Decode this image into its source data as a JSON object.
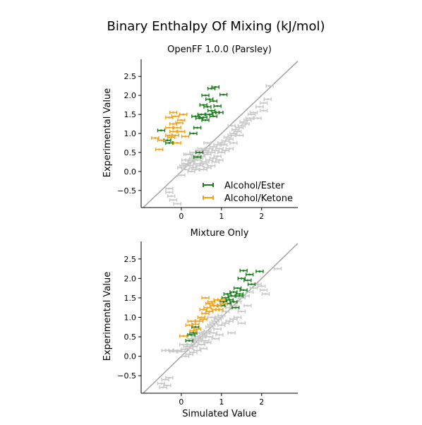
{
  "figure": {
    "suptitle": "Binary Enthalpy Of Mixing (kJ/mol)",
    "colors": {
      "grey": "#c8c8c8",
      "green": "#1a7f1a",
      "orange": "#f5a21a",
      "diag": "#9e9e9e"
    }
  },
  "chart_data": [
    {
      "type": "scatter",
      "title": "OpenFF 1.0.0 (Parsley)",
      "xlabel": "",
      "ylabel": "Experimental Value",
      "xlim": [
        -1.0,
        2.9
      ],
      "ylim": [
        -0.95,
        2.95
      ],
      "xticks": [
        "0",
        "1",
        "2"
      ],
      "yticks": [
        "−0.5",
        "0.0",
        "0.5",
        "1.0",
        "1.5",
        "2.0",
        "2.5"
      ],
      "legend_position": "lower-right",
      "series": [
        {
          "name": "Other",
          "color": "grey",
          "in_legend": false,
          "points": [
            [
              -0.3,
              -0.55
            ],
            [
              -0.25,
              -0.65
            ],
            [
              -0.2,
              -0.75
            ],
            [
              -0.3,
              -0.45
            ],
            [
              -0.1,
              -0.85
            ],
            [
              0.0,
              0.1
            ],
            [
              0.05,
              0.15
            ],
            [
              0.1,
              0.05
            ],
            [
              0.0,
              -0.1
            ],
            [
              0.15,
              0.2
            ],
            [
              0.2,
              0.3
            ],
            [
              0.25,
              0.25
            ],
            [
              0.3,
              0.35
            ],
            [
              0.1,
              0.3
            ],
            [
              0.2,
              0.45
            ],
            [
              0.3,
              0.5
            ],
            [
              0.35,
              0.4
            ],
            [
              0.4,
              0.3
            ],
            [
              0.45,
              0.35
            ],
            [
              0.5,
              0.4
            ],
            [
              0.55,
              0.5
            ],
            [
              0.5,
              0.6
            ],
            [
              0.6,
              0.55
            ],
            [
              0.65,
              0.45
            ],
            [
              0.7,
              0.6
            ],
            [
              0.75,
              0.5
            ],
            [
              0.8,
              0.65
            ],
            [
              0.85,
              0.55
            ],
            [
              0.9,
              0.7
            ],
            [
              0.95,
              0.6
            ],
            [
              1.0,
              0.75
            ],
            [
              1.05,
              0.7
            ],
            [
              1.1,
              0.8
            ],
            [
              1.15,
              0.9
            ],
            [
              1.2,
              0.85
            ],
            [
              1.25,
              0.95
            ],
            [
              1.3,
              1.0
            ],
            [
              1.35,
              1.1
            ],
            [
              1.4,
              1.05
            ],
            [
              1.45,
              1.15
            ],
            [
              1.5,
              1.2
            ],
            [
              1.55,
              1.3
            ],
            [
              1.6,
              1.25
            ],
            [
              1.65,
              1.35
            ],
            [
              1.7,
              1.4
            ],
            [
              1.75,
              1.5
            ],
            [
              1.8,
              1.55
            ],
            [
              1.95,
              1.7
            ],
            [
              2.05,
              1.8
            ],
            [
              2.15,
              1.9
            ],
            [
              2.05,
              1.6
            ],
            [
              1.9,
              1.4
            ],
            [
              0.3,
              0.1
            ],
            [
              0.4,
              0.2
            ],
            [
              0.6,
              0.25
            ],
            [
              0.7,
              0.3
            ],
            [
              0.8,
              0.35
            ],
            [
              0.9,
              0.4
            ],
            [
              1.0,
              0.5
            ],
            [
              1.1,
              0.55
            ],
            [
              1.2,
              0.6
            ],
            [
              0.25,
              0.0
            ],
            [
              0.35,
              0.05
            ],
            [
              0.45,
              0.15
            ],
            [
              0.15,
              0.45
            ],
            [
              0.65,
              0.75
            ],
            [
              1.3,
              0.75
            ],
            [
              1.45,
              0.95
            ],
            [
              0.55,
              0.2
            ],
            [
              0.75,
              0.15
            ],
            [
              0.85,
              0.25
            ],
            [
              0.95,
              0.3
            ],
            [
              0.45,
              0.55
            ],
            [
              0.2,
              0.15
            ],
            [
              2.2,
              2.25
            ],
            [
              0.1,
              0.2
            ],
            [
              0.55,
              0.05
            ],
            [
              0.65,
              0.1
            ],
            [
              1.25,
              1.2
            ]
          ]
        },
        {
          "name": "Alcohol/Ester",
          "color": "green",
          "in_legend": true,
          "points": [
            [
              0.75,
              2.18
            ],
            [
              0.85,
              2.22
            ],
            [
              1.05,
              2.02
            ],
            [
              0.6,
              2.0
            ],
            [
              0.7,
              1.9
            ],
            [
              0.8,
              1.85
            ],
            [
              0.55,
              1.75
            ],
            [
              0.65,
              1.7
            ],
            [
              0.9,
              1.72
            ],
            [
              0.75,
              1.6
            ],
            [
              0.85,
              1.55
            ],
            [
              0.5,
              1.5
            ],
            [
              0.35,
              1.45
            ],
            [
              0.45,
              1.4
            ],
            [
              0.55,
              1.42
            ],
            [
              0.7,
              1.5
            ],
            [
              0.8,
              1.45
            ],
            [
              0.6,
              1.35
            ],
            [
              0.4,
              1.15
            ],
            [
              0.3,
              1.0
            ],
            [
              -0.5,
              1.08
            ],
            [
              -0.35,
              0.82
            ],
            [
              -0.3,
              0.75
            ],
            [
              0.45,
              0.5
            ],
            [
              0.4,
              0.38
            ],
            [
              0.95,
              1.55
            ]
          ]
        },
        {
          "name": "Alcohol/Ketone",
          "color": "orange",
          "in_legend": true,
          "points": [
            [
              -0.55,
              0.58
            ],
            [
              -0.65,
              0.88
            ],
            [
              -0.5,
              0.82
            ],
            [
              -0.3,
              0.95
            ],
            [
              -0.2,
              1.05
            ],
            [
              -0.15,
              0.95
            ],
            [
              -0.3,
              1.15
            ],
            [
              -0.2,
              1.25
            ],
            [
              -0.1,
              1.15
            ],
            [
              0.0,
              1.05
            ],
            [
              0.1,
              0.92
            ],
            [
              -0.3,
              1.42
            ],
            [
              -0.15,
              1.45
            ],
            [
              0.05,
              1.5
            ],
            [
              -0.2,
              1.55
            ],
            [
              0.0,
              1.35
            ],
            [
              -0.05,
              1.28
            ],
            [
              -0.25,
              0.9
            ],
            [
              -0.1,
              0.75
            ]
          ]
        }
      ]
    },
    {
      "type": "scatter",
      "title": "Mixture Only",
      "xlabel": "Simulated Value",
      "ylabel": "Experimental Value",
      "xlim": [
        -1.0,
        2.9
      ],
      "ylim": [
        -0.95,
        2.95
      ],
      "xticks": [
        "0",
        "1",
        "2"
      ],
      "yticks": [
        "−0.5",
        "0.0",
        "0.5",
        "1.0",
        "1.5",
        "2.0",
        "2.5"
      ],
      "series": [
        {
          "name": "Other",
          "color": "grey",
          "in_legend": false,
          "points": [
            [
              -0.5,
              -0.7
            ],
            [
              -0.45,
              -0.8
            ],
            [
              -0.4,
              -0.6
            ],
            [
              -0.35,
              -0.75
            ],
            [
              -0.3,
              -0.55
            ],
            [
              -0.4,
              0.15
            ],
            [
              -0.3,
              0.15
            ],
            [
              -0.2,
              0.12
            ],
            [
              -0.1,
              0.15
            ],
            [
              0.0,
              0.12
            ],
            [
              0.1,
              0.18
            ],
            [
              0.15,
              0.25
            ],
            [
              0.2,
              0.2
            ],
            [
              0.25,
              0.3
            ],
            [
              0.3,
              0.25
            ],
            [
              0.35,
              0.35
            ],
            [
              0.4,
              0.4
            ],
            [
              0.45,
              0.45
            ],
            [
              0.5,
              0.5
            ],
            [
              0.55,
              0.55
            ],
            [
              0.6,
              0.6
            ],
            [
              0.65,
              0.65
            ],
            [
              0.7,
              0.75
            ],
            [
              0.75,
              0.8
            ],
            [
              0.8,
              0.85
            ],
            [
              0.85,
              0.9
            ],
            [
              0.9,
              0.95
            ],
            [
              0.95,
              1.0
            ],
            [
              1.0,
              1.05
            ],
            [
              1.1,
              1.15
            ],
            [
              1.2,
              1.25
            ],
            [
              1.3,
              1.3
            ],
            [
              1.4,
              1.4
            ],
            [
              1.5,
              1.5
            ],
            [
              1.6,
              1.55
            ],
            [
              1.7,
              1.65
            ],
            [
              1.8,
              1.75
            ],
            [
              1.9,
              1.85
            ],
            [
              2.0,
              1.8
            ],
            [
              2.05,
              1.7
            ],
            [
              2.1,
              1.6
            ],
            [
              2.4,
              2.25
            ],
            [
              0.5,
              0.3
            ],
            [
              0.6,
              0.4
            ],
            [
              0.7,
              0.5
            ],
            [
              0.8,
              0.6
            ],
            [
              0.9,
              0.7
            ],
            [
              1.0,
              0.8
            ],
            [
              1.1,
              0.85
            ],
            [
              1.2,
              0.9
            ],
            [
              1.3,
              0.95
            ],
            [
              1.4,
              1.0
            ],
            [
              0.2,
              0.05
            ],
            [
              0.3,
              0.1
            ],
            [
              0.4,
              0.15
            ],
            [
              1.5,
              1.15
            ],
            [
              1.65,
              1.3
            ],
            [
              0.1,
              0.0
            ],
            [
              0.35,
              0.5
            ],
            [
              0.45,
              0.6
            ],
            [
              0.55,
              0.2
            ],
            [
              0.65,
              0.35
            ],
            [
              1.25,
              0.6
            ],
            [
              1.5,
              0.85
            ],
            [
              0.95,
              0.55
            ],
            [
              0.05,
              0.3
            ],
            [
              0.25,
              0.45
            ],
            [
              0.75,
              1.0
            ],
            [
              0.85,
              0.45
            ]
          ]
        },
        {
          "name": "Alcohol/Ester",
          "color": "green",
          "in_legend": true,
          "points": [
            [
              1.55,
              2.2
            ],
            [
              1.7,
              2.1
            ],
            [
              1.95,
              2.18
            ],
            [
              1.5,
              2.0
            ],
            [
              1.65,
              1.95
            ],
            [
              1.75,
              1.85
            ],
            [
              1.4,
              1.75
            ],
            [
              1.55,
              1.7
            ],
            [
              1.3,
              1.65
            ],
            [
              1.45,
              1.6
            ],
            [
              1.15,
              1.6
            ],
            [
              1.25,
              1.55
            ],
            [
              1.1,
              1.5
            ],
            [
              1.2,
              1.45
            ],
            [
              1.05,
              1.4
            ],
            [
              1.3,
              1.4
            ],
            [
              1.15,
              1.35
            ],
            [
              1.35,
              1.25
            ],
            [
              1.0,
              1.3
            ],
            [
              0.35,
              0.75
            ],
            [
              0.3,
              0.6
            ],
            [
              0.25,
              0.55
            ],
            [
              0.2,
              0.4
            ],
            [
              1.45,
              1.55
            ]
          ]
        },
        {
          "name": "Alcohol/Ketone",
          "color": "orange",
          "in_legend": true,
          "points": [
            [
              0.6,
              1.5
            ],
            [
              0.7,
              1.35
            ],
            [
              0.75,
              1.4
            ],
            [
              0.8,
              1.3
            ],
            [
              0.9,
              1.3
            ],
            [
              0.95,
              1.2
            ],
            [
              1.0,
              1.45
            ],
            [
              0.55,
              1.2
            ],
            [
              0.65,
              1.25
            ],
            [
              0.7,
              1.15
            ],
            [
              0.85,
              1.2
            ],
            [
              0.5,
              1.0
            ],
            [
              0.55,
              0.95
            ],
            [
              0.6,
              1.1
            ],
            [
              0.45,
              0.9
            ],
            [
              0.35,
              0.82
            ],
            [
              0.2,
              0.8
            ],
            [
              0.25,
              0.9
            ],
            [
              0.05,
              0.52
            ],
            [
              0.4,
              0.7
            ],
            [
              0.3,
              0.65
            ],
            [
              1.05,
              1.35
            ],
            [
              0.9,
              1.45
            ]
          ]
        }
      ]
    }
  ]
}
